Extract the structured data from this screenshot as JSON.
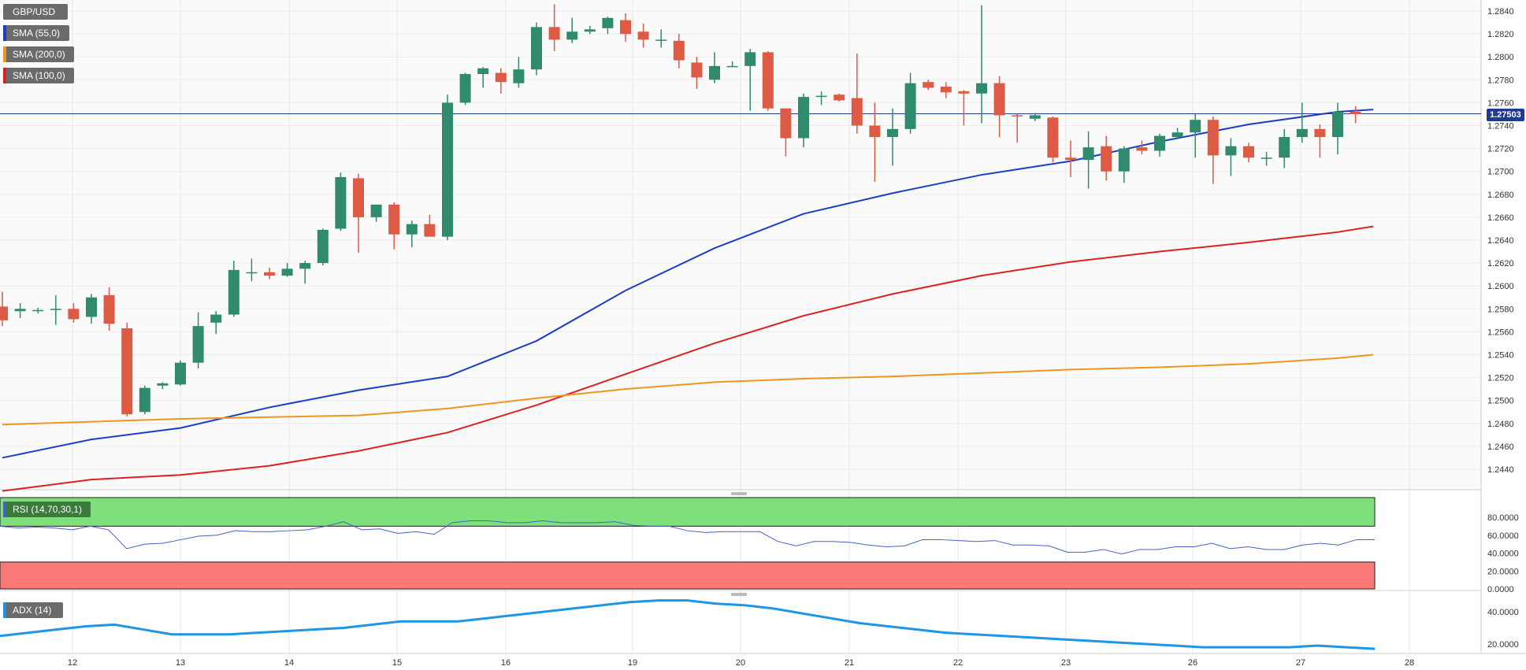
{
  "legend": {
    "symbol": "GBP/USD",
    "sma55": "SMA (55,0)",
    "sma200": "SMA (200,0)",
    "sma100": "SMA (100,0)",
    "rsi": "RSI (14,70,30,1)",
    "adx": "ADX (14)"
  },
  "colors": {
    "up": "#2f8a6e",
    "down": "#dd5a45",
    "sma55": "#1a3ec8",
    "sma100": "#e02020",
    "sma200": "#f0961e",
    "rsi_line": "#4560c8",
    "adx_line": "#1e96e6",
    "overbought_zone": "#7ee07a",
    "oversold_zone": "#fa7a78",
    "current_price": "#1f3b8f"
  },
  "current_price": "1.27503",
  "chart_data": [
    {
      "type": "candlestick",
      "title": "GBP/USD",
      "x_tick_labels": [
        "12",
        "13",
        "14",
        "15",
        "16",
        "19",
        "20",
        "21",
        "22",
        "23",
        "26",
        "27",
        "28"
      ],
      "ylim": [
        1.2425,
        1.2845
      ],
      "y_tick_labels": [
        "1.2440",
        "1.2460",
        "1.2480",
        "1.2500",
        "1.2520",
        "1.2540",
        "1.2560",
        "1.2580",
        "1.2600",
        "1.2620",
        "1.2640",
        "1.2660",
        "1.2680",
        "1.2700",
        "1.2720",
        "1.2740",
        "1.2760",
        "1.2780",
        "1.2800",
        "1.2820",
        "1.2840"
      ],
      "grid": true,
      "candles": [
        [
          1.2582,
          1.2595,
          1.2565,
          1.257
        ],
        [
          1.2578,
          1.2585,
          1.2572,
          1.258
        ],
        [
          1.2578,
          1.2581,
          1.2576,
          1.2579
        ],
        [
          1.258,
          1.2592,
          1.2566,
          1.258
        ],
        [
          1.258,
          1.2585,
          1.2568,
          1.2571
        ],
        [
          1.2573,
          1.2593,
          1.2567,
          1.259
        ],
        [
          1.2592,
          1.2599,
          1.2561,
          1.2567
        ],
        [
          1.2563,
          1.2568,
          1.2486,
          1.2488
        ],
        [
          1.249,
          1.2513,
          1.2488,
          1.2511
        ],
        [
          1.2513,
          1.2516,
          1.251,
          1.2515
        ],
        [
          1.2514,
          1.2535,
          1.2513,
          1.2533
        ],
        [
          1.2533,
          1.2577,
          1.2528,
          1.2565
        ],
        [
          1.2568,
          1.2578,
          1.2558,
          1.2575
        ],
        [
          1.2575,
          1.2622,
          1.2573,
          1.2614
        ],
        [
          1.2612,
          1.2624,
          1.2604,
          1.2612
        ],
        [
          1.2612,
          1.2616,
          1.2606,
          1.2609
        ],
        [
          1.2609,
          1.262,
          1.2608,
          1.2615
        ],
        [
          1.2615,
          1.2622,
          1.2602,
          1.262
        ],
        [
          1.262,
          1.265,
          1.2618,
          1.2649
        ],
        [
          1.265,
          1.2699,
          1.2648,
          1.2695
        ],
        [
          1.2694,
          1.2698,
          1.2629,
          1.266
        ],
        [
          1.266,
          1.2671,
          1.2656,
          1.2671
        ],
        [
          1.2671,
          1.2673,
          1.2632,
          1.2645
        ],
        [
          1.2645,
          1.2657,
          1.2634,
          1.2654
        ],
        [
          1.2654,
          1.2662,
          1.2643,
          1.2643
        ],
        [
          1.2643,
          1.2767,
          1.264,
          1.276
        ],
        [
          1.276,
          1.2786,
          1.2758,
          1.2785
        ],
        [
          1.2785,
          1.2791,
          1.2773,
          1.279
        ],
        [
          1.2786,
          1.279,
          1.2768,
          1.2778
        ],
        [
          1.2777,
          1.28,
          1.2773,
          1.2789
        ],
        [
          1.2789,
          1.283,
          1.2784,
          1.2826
        ],
        [
          1.2826,
          1.2846,
          1.2805,
          1.2815
        ],
        [
          1.2815,
          1.2834,
          1.2812,
          1.2822
        ],
        [
          1.2822,
          1.2827,
          1.282,
          1.2824
        ],
        [
          1.2825,
          1.2835,
          1.282,
          1.2834
        ],
        [
          1.2832,
          1.2838,
          1.2813,
          1.282
        ],
        [
          1.2822,
          1.2829,
          1.2808,
          1.2815
        ],
        [
          1.2815,
          1.2824,
          1.2808,
          1.2815
        ],
        [
          1.2814,
          1.282,
          1.279,
          1.2797
        ],
        [
          1.2795,
          1.28,
          1.2772,
          1.2782
        ],
        [
          1.278,
          1.2804,
          1.2777,
          1.2792
        ],
        [
          1.2791,
          1.2796,
          1.2791,
          1.2792
        ],
        [
          1.2792,
          1.2807,
          1.2753,
          1.2804
        ],
        [
          1.2804,
          1.2805,
          1.2753,
          1.2755
        ],
        [
          1.2755,
          1.2755,
          1.2713,
          1.2729
        ],
        [
          1.2729,
          1.2768,
          1.2721,
          1.2765
        ],
        [
          1.2765,
          1.277,
          1.2758,
          1.2766
        ],
        [
          1.2767,
          1.2768,
          1.2761,
          1.2762
        ],
        [
          1.2764,
          1.2803,
          1.2733,
          1.274
        ],
        [
          1.274,
          1.276,
          1.2691,
          1.273
        ],
        [
          1.273,
          1.2755,
          1.2705,
          1.2737
        ],
        [
          1.2737,
          1.2786,
          1.2733,
          1.2777
        ],
        [
          1.2778,
          1.278,
          1.2771,
          1.2773
        ],
        [
          1.2774,
          1.2778,
          1.2764,
          1.2769
        ],
        [
          1.277,
          1.2771,
          1.274,
          1.2768
        ],
        [
          1.2768,
          1.2845,
          1.2742,
          1.2777
        ],
        [
          1.2777,
          1.2783,
          1.273,
          1.2749
        ],
        [
          1.2749,
          1.275,
          1.2725,
          1.2748
        ],
        [
          1.2746,
          1.2751,
          1.2744,
          1.2749
        ],
        [
          1.2747,
          1.2748,
          1.2708,
          1.2712
        ],
        [
          1.2712,
          1.2727,
          1.2695,
          1.271
        ],
        [
          1.271,
          1.2735,
          1.2685,
          1.2721
        ],
        [
          1.2722,
          1.2731,
          1.2692,
          1.27
        ],
        [
          1.27,
          1.2722,
          1.269,
          1.272
        ],
        [
          1.2721,
          1.2727,
          1.2715,
          1.2718
        ],
        [
          1.2718,
          1.2733,
          1.2713,
          1.2731
        ],
        [
          1.273,
          1.2738,
          1.2728,
          1.2734
        ],
        [
          1.2734,
          1.275,
          1.2712,
          1.2745
        ],
        [
          1.2745,
          1.2748,
          1.2689,
          1.2714
        ],
        [
          1.2714,
          1.2729,
          1.2696,
          1.2722
        ],
        [
          1.2722,
          1.2725,
          1.2708,
          1.2712
        ],
        [
          1.2711,
          1.2717,
          1.2705,
          1.2712
        ],
        [
          1.2712,
          1.2737,
          1.2703,
          1.273
        ],
        [
          1.273,
          1.276,
          1.2725,
          1.2737
        ],
        [
          1.2737,
          1.2741,
          1.2712,
          1.273
        ],
        [
          1.273,
          1.276,
          1.2715,
          1.2752
        ],
        [
          1.2752,
          1.2757,
          1.2742,
          1.275
        ]
      ],
      "series": [
        {
          "name": "SMA (55,0)",
          "points": [
            [
              0,
              1.245
            ],
            [
              5,
              1.2466
            ],
            [
              10,
              1.2476
            ],
            [
              15,
              1.2494
            ],
            [
              20,
              1.2509
            ],
            [
              25,
              1.2521
            ],
            [
              30,
              1.2552
            ],
            [
              35,
              1.2596
            ],
            [
              40,
              1.2633
            ],
            [
              45,
              1.2663
            ],
            [
              50,
              1.2681
            ],
            [
              55,
              1.2697
            ],
            [
              60,
              1.2709
            ],
            [
              65,
              1.2726
            ],
            [
              70,
              1.2741
            ],
            [
              75,
              1.2752
            ],
            [
              77,
              1.2754
            ]
          ]
        },
        {
          "name": "SMA (100,0)",
          "points": [
            [
              0,
              1.2421
            ],
            [
              5,
              1.2431
            ],
            [
              10,
              1.2435
            ],
            [
              15,
              1.2443
            ],
            [
              20,
              1.2456
            ],
            [
              25,
              1.2472
            ],
            [
              30,
              1.2496
            ],
            [
              35,
              1.2523
            ],
            [
              40,
              1.255
            ],
            [
              45,
              1.2574
            ],
            [
              50,
              1.2593
            ],
            [
              55,
              1.2609
            ],
            [
              60,
              1.2621
            ],
            [
              65,
              1.263
            ],
            [
              70,
              1.2638
            ],
            [
              75,
              1.2647
            ],
            [
              77,
              1.2652
            ]
          ]
        },
        {
          "name": "SMA (200,0)",
          "points": [
            [
              0,
              1.2479
            ],
            [
              10,
              1.2484
            ],
            [
              20,
              1.2487
            ],
            [
              25,
              1.2493
            ],
            [
              30,
              1.2502
            ],
            [
              35,
              1.251
            ],
            [
              40,
              1.2516
            ],
            [
              45,
              1.2519
            ],
            [
              50,
              1.2521
            ],
            [
              55,
              1.2524
            ],
            [
              60,
              1.2527
            ],
            [
              65,
              1.2529
            ],
            [
              70,
              1.2532
            ],
            [
              75,
              1.2537
            ],
            [
              77,
              1.254
            ]
          ]
        }
      ]
    },
    {
      "type": "line",
      "title": "RSI (14,70,30,1)",
      "ylim": [
        0,
        80
      ],
      "y_tick_labels": [
        "0.0000",
        "20.0000",
        "40.0000",
        "60.0000",
        "80.0000"
      ],
      "zones": {
        "overbought": [
          70,
          100
        ],
        "oversold": [
          0,
          30
        ]
      },
      "series": [
        {
          "name": "RSI (14,70,30,1)",
          "values": [
            70,
            68,
            69,
            68,
            66,
            70,
            66,
            45,
            50,
            51,
            55,
            59,
            60,
            65,
            64,
            64,
            65,
            66,
            70,
            75,
            66,
            67,
            62,
            64,
            61,
            74,
            76,
            76,
            74,
            74,
            76,
            74,
            74,
            74,
            75,
            71,
            70,
            70,
            65,
            63,
            64,
            64,
            64,
            53,
            48,
            53,
            53,
            52,
            49,
            47,
            48,
            55,
            55,
            54,
            53,
            54,
            49,
            49,
            48,
            41,
            41,
            44,
            39,
            44,
            44,
            47,
            47,
            51,
            45,
            47,
            44,
            44,
            49,
            51,
            49,
            55,
            55
          ]
        }
      ]
    },
    {
      "type": "line",
      "title": "ADX (14)",
      "y_tick_labels": [
        "20.0000",
        "40.0000"
      ],
      "series": [
        {
          "name": "ADX (14)",
          "values": [
            25,
            27,
            29,
            31,
            32,
            29,
            26,
            26,
            26,
            27,
            28,
            29,
            30,
            32,
            34,
            34,
            34,
            36,
            38,
            40,
            42,
            44,
            46,
            47,
            47,
            45,
            44,
            42,
            39,
            36,
            33,
            31,
            29,
            27,
            26,
            25,
            24,
            23,
            22,
            21,
            20,
            19,
            18,
            18,
            18,
            18,
            19,
            18,
            17
          ]
        }
      ]
    }
  ]
}
